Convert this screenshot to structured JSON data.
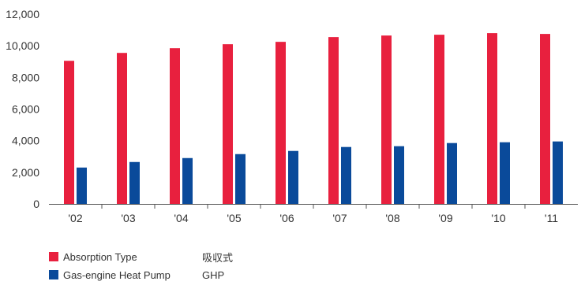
{
  "chart_data": {
    "type": "bar",
    "categories": [
      "'02",
      "'03",
      "'04",
      "'05",
      "'06",
      "'07",
      "'08",
      "'09",
      "'10",
      "'11"
    ],
    "series": [
      {
        "name": "Absorption Type",
        "name_ja": "吸収式",
        "color": "#e8203e",
        "values": [
          9050,
          9550,
          9850,
          10100,
          10250,
          10550,
          10650,
          10700,
          10800,
          10750
        ]
      },
      {
        "name": "Gas-engine Heat Pump",
        "name_ja": "GHP",
        "color": "#0a4a9a",
        "values": [
          2300,
          2650,
          2900,
          3150,
          3350,
          3600,
          3650,
          3850,
          3900,
          3950
        ]
      }
    ],
    "yticks": [
      0,
      2000,
      4000,
      6000,
      8000,
      10000,
      12000
    ],
    "ytick_labels": [
      "0",
      "2,000",
      "4,000",
      "6,000",
      "8,000",
      "10,000",
      "12,000"
    ],
    "ylim": [
      0,
      12000
    ],
    "grid": false,
    "legend_position": "bottom-left"
  }
}
